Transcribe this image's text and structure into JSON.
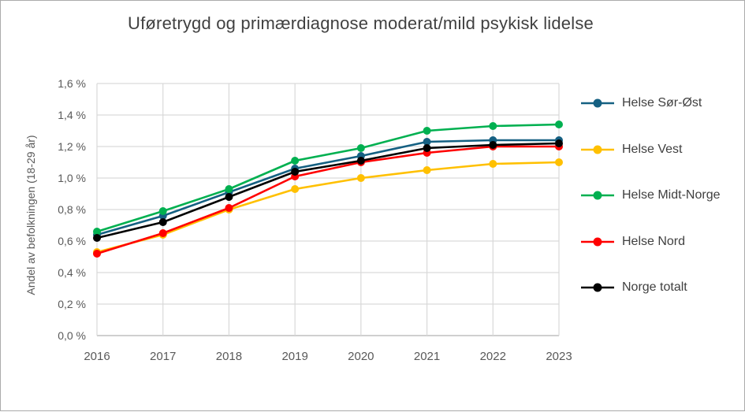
{
  "title": "Uføretrygd og primærdiagnose moderat/mild psykisk lidelse",
  "chart_data": {
    "type": "line",
    "title": "Uføretrygd og primærdiagnose moderat/mild psykisk lidelse",
    "xlabel": "",
    "ylabel": "Andel av befolkningen (18-29 år)",
    "x_categories": [
      "2016",
      "2017",
      "2018",
      "2019",
      "2020",
      "2021",
      "2022",
      "2023"
    ],
    "ylim": [
      0,
      1.6
    ],
    "y_tick_step": 0.2,
    "y_ticks": [
      {
        "value": 0.0,
        "label": "0,0 %"
      },
      {
        "value": 0.2,
        "label": "0,2 %"
      },
      {
        "value": 0.4,
        "label": "0,4 %"
      },
      {
        "value": 0.6,
        "label": "0,6 %"
      },
      {
        "value": 0.8,
        "label": "0,8 %"
      },
      {
        "value": 1.0,
        "label": "1,0 %"
      },
      {
        "value": 1.2,
        "label": "1,2 %"
      },
      {
        "value": 1.4,
        "label": "1,4 %"
      },
      {
        "value": 1.6,
        "label": "1,6 %"
      }
    ],
    "grid": true,
    "legend_position": "right",
    "series": [
      {
        "name": "Helse Sør-Øst",
        "color": "#156082",
        "values": [
          0.64,
          0.76,
          0.91,
          1.06,
          1.14,
          1.23,
          1.24,
          1.24
        ]
      },
      {
        "name": "Helse Vest",
        "color": "#FFC000",
        "values": [
          0.53,
          0.64,
          0.8,
          0.93,
          1.0,
          1.05,
          1.09,
          1.1
        ]
      },
      {
        "name": "Helse Midt-Norge",
        "color": "#00B050",
        "values": [
          0.66,
          0.79,
          0.93,
          1.11,
          1.19,
          1.3,
          1.33,
          1.34
        ]
      },
      {
        "name": "Helse Nord",
        "color": "#FF0000",
        "values": [
          0.52,
          0.65,
          0.81,
          1.01,
          1.1,
          1.16,
          1.2,
          1.2
        ]
      },
      {
        "name": "Norge totalt",
        "color": "#000000",
        "values": [
          0.62,
          0.72,
          0.88,
          1.04,
          1.11,
          1.19,
          1.21,
          1.22
        ]
      }
    ]
  },
  "colors": {
    "gridline": "#D9D9D9",
    "axis_line": "#BFBFBF",
    "tick_text": "#595959",
    "title_text": "#404040",
    "background": "#FFFFFF"
  }
}
